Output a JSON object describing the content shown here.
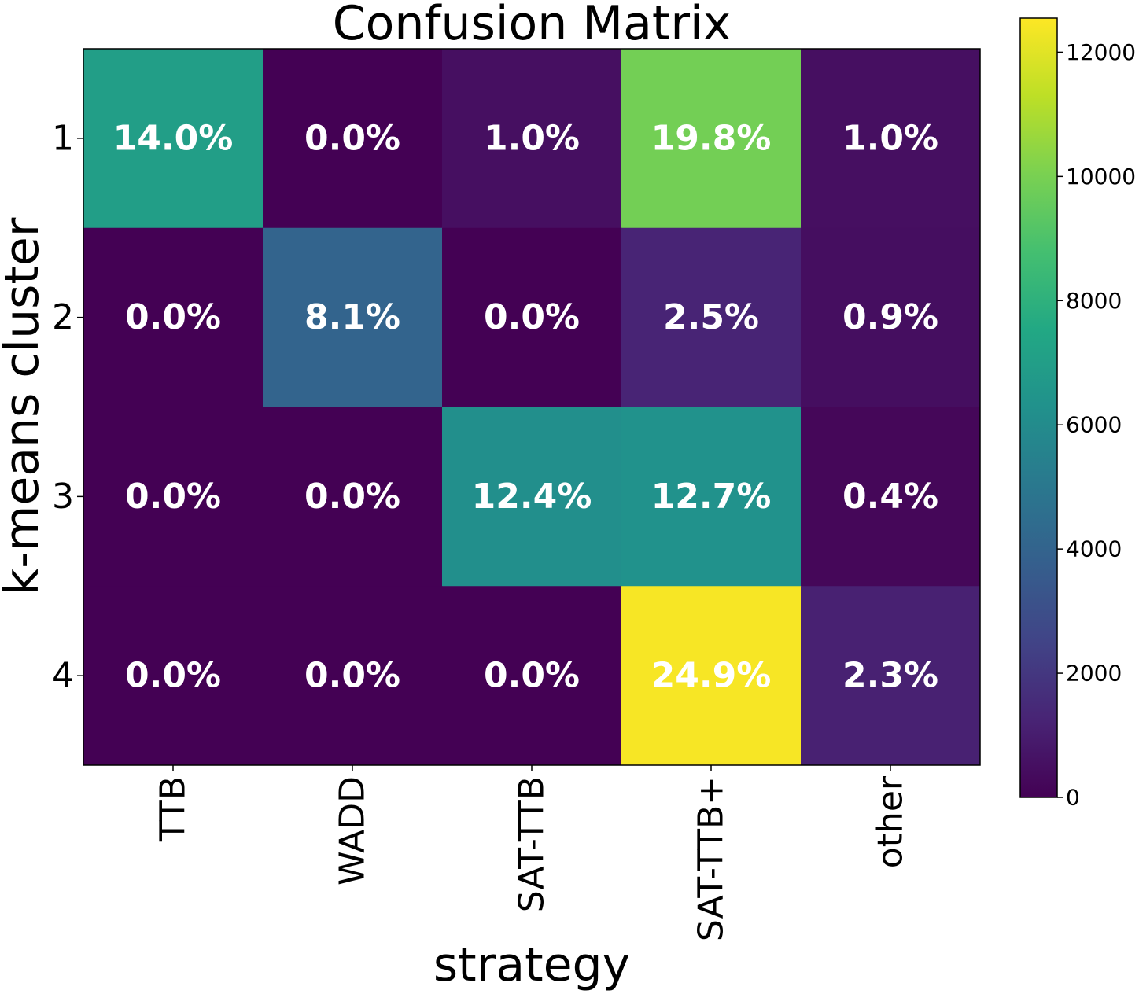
{
  "chart_data": {
    "type": "heatmap",
    "title": "Confusion Matrix",
    "xlabel": "strategy",
    "ylabel": "k-means cluster",
    "x_categories": [
      "TTB",
      "WADD",
      "SAT-TTB",
      "SAT-TTB+",
      "other"
    ],
    "y_categories": [
      "1",
      "2",
      "3",
      "4"
    ],
    "values": [
      [
        7000,
        0,
        510,
        9880,
        500
      ],
      [
        0,
        4040,
        0,
        1250,
        450
      ],
      [
        0,
        0,
        6190,
        6340,
        200
      ],
      [
        0,
        0,
        0,
        12430,
        1150
      ]
    ],
    "cell_labels": [
      [
        "14.0%",
        "0.0%",
        "1.0%",
        "19.8%",
        "1.0%"
      ],
      [
        "0.0%",
        "8.1%",
        "0.0%",
        "2.5%",
        "0.9%"
      ],
      [
        "0.0%",
        "0.0%",
        "12.4%",
        "12.7%",
        "0.4%"
      ],
      [
        "0.0%",
        "0.0%",
        "0.0%",
        "24.9%",
        "2.3%"
      ]
    ],
    "colormap": "viridis",
    "colorbar": {
      "vmin": 0,
      "vmax": 12550,
      "ticks": [
        0,
        2000,
        4000,
        6000,
        8000,
        10000,
        12000
      ],
      "tick_labels": [
        "0",
        "2000",
        "4000",
        "6000",
        "8000",
        "10000",
        "12000"
      ]
    }
  }
}
